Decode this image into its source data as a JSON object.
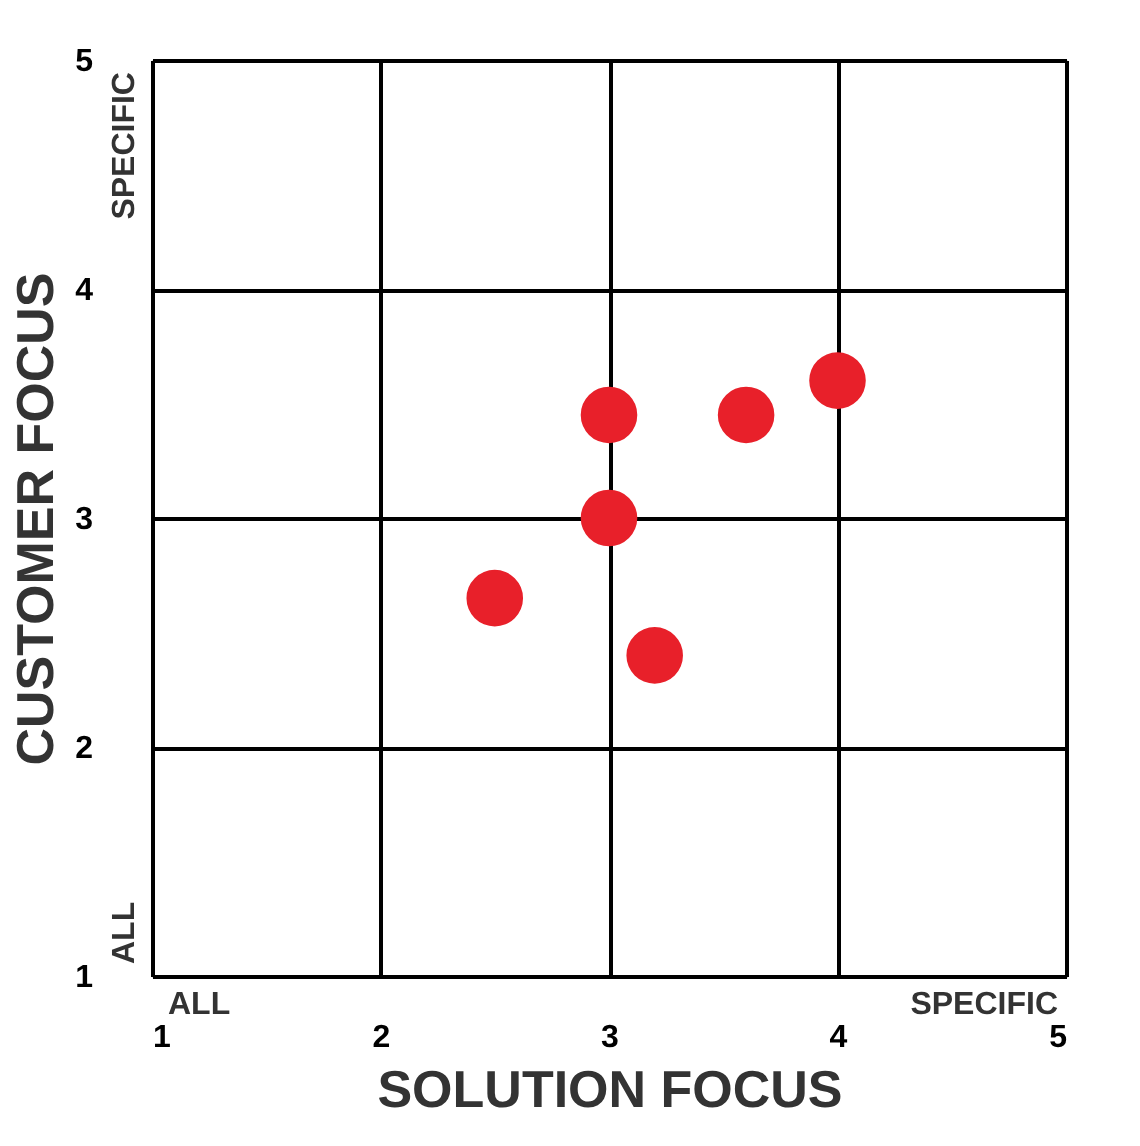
{
  "chart_data": {
    "type": "scatter",
    "xlabel": "SOLUTION FOCUS",
    "ylabel": "CUSTOMER FOCUS",
    "x": [
      3.0,
      3.6,
      4.0,
      3.0,
      2.5,
      3.2
    ],
    "values": [
      3.45,
      3.45,
      3.6,
      3.0,
      2.65,
      2.4
    ],
    "color": "#e8202a",
    "marker": "circle",
    "xlim": [
      1,
      5
    ],
    "ylim": [
      1,
      5
    ],
    "xticks": [
      1,
      2,
      3,
      4,
      5
    ],
    "yticks": [
      1,
      2,
      3,
      4,
      5
    ],
    "grid": true,
    "annotations": [
      "ALL",
      "SPECIFIC",
      "SPECIFIC",
      "ALL"
    ]
  }
}
